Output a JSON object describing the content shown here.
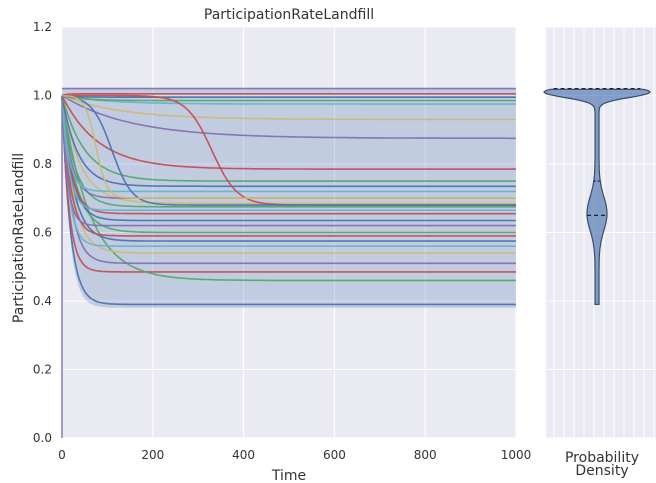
{
  "chart_data": [
    {
      "type": "line",
      "title": "ParticipationRateLandfill",
      "xlabel": "Time",
      "ylabel": "ParticipationRateLandfill",
      "xlim": [
        0,
        1000
      ],
      "ylim": [
        0,
        1.2
      ],
      "xticks": [
        "0",
        "200",
        "400",
        "600",
        "800",
        "1000"
      ],
      "yticks": [
        "0.0",
        "0.2",
        "0.4",
        "0.6",
        "0.8",
        "1.0",
        "1.2"
      ],
      "grid": true,
      "band": {
        "lower_start": 0.36,
        "lower_end": 0.38,
        "upper": 1.02,
        "shape": "lower bound decays from 1.0 to ~0.38 by t≈70"
      },
      "series": [
        {
          "color": "#4c72b0",
          "y0": 1.0,
          "yend": 0.39,
          "tau": 18
        },
        {
          "color": "#c44e52",
          "y0": 1.0,
          "yend": 0.485,
          "tau": 15
        },
        {
          "color": "#55a868",
          "y0": 1.0,
          "yend": 0.46,
          "tau": 60
        },
        {
          "color": "#8172b2",
          "y0": 1.0,
          "yend": 0.51,
          "tau": 20
        },
        {
          "color": "#ccb974",
          "y0": 1.0,
          "yend": 0.54,
          "tau": 25
        },
        {
          "color": "#64b5cd",
          "y0": 1.0,
          "yend": 0.56,
          "tau": 15
        },
        {
          "color": "#4c72b0",
          "y0": 1.0,
          "yend": 0.575,
          "tau": 25
        },
        {
          "color": "#c44e52",
          "y0": 1.0,
          "yend": 0.59,
          "tau": 18
        },
        {
          "color": "#55a868",
          "y0": 1.0,
          "yend": 0.6,
          "tau": 30
        },
        {
          "color": "#8172b2",
          "y0": 1.0,
          "yend": 0.62,
          "tau": 12
        },
        {
          "color": "#4c72b0",
          "y0": 1.0,
          "yend": 0.635,
          "tau": 22
        },
        {
          "color": "#c44e52",
          "y0": 1.0,
          "yend": 0.655,
          "tau": 20
        },
        {
          "color": "#64b5cd",
          "y0": 1.0,
          "yend": 0.665,
          "tau": 15
        },
        {
          "color": "#55a868",
          "y0": 1.0,
          "yend": 0.675,
          "tau": 28
        },
        {
          "color": "#ccb974",
          "y0": 1.0,
          "yend": 0.685,
          "tau": 40
        },
        {
          "color": "#8172b2",
          "y0": 1.0,
          "yend": 0.7,
          "tau": 20
        },
        {
          "color": "#64b5cd",
          "y0": 1.0,
          "yend": 0.72,
          "tau": 15
        },
        {
          "color": "#4c72b0",
          "y0": 1.0,
          "yend": 0.735,
          "tau": 35
        },
        {
          "color": "#55a868",
          "y0": 1.0,
          "yend": 0.75,
          "tau": 50
        },
        {
          "color": "#c44e52",
          "y0": 1.0,
          "yend": 0.785,
          "tau": 80
        },
        {
          "color": "#8172b2",
          "y0": 1.0,
          "yend": 0.875,
          "tau": 150
        },
        {
          "color": "#ccb974",
          "y0": 1.0,
          "yend": 0.93,
          "tau": 130
        },
        {
          "color": "#64b5cd",
          "y0": 1.0,
          "yend": 0.975,
          "tau": 100
        },
        {
          "color": "#55a868",
          "y0": 1.0,
          "yend": 0.985,
          "tau": 50
        },
        {
          "color": "#4c72b0",
          "y0": 1.0,
          "yend": 0.995,
          "tau": 30
        },
        {
          "color": "#c44e52",
          "y0": 1.0,
          "yend": 1.005,
          "tau": 10
        },
        {
          "color": "#8172b2",
          "y0": 1.02,
          "yend": 1.02,
          "tau": 10
        },
        {
          "color": "#c44e52",
          "y0": 1.0,
          "yend": 0.68,
          "tau": 0,
          "sigmoid": {
            "center": 330,
            "width": 28
          }
        },
        {
          "color": "#4c72b0",
          "y0": 1.0,
          "yend": 0.68,
          "tau": 0,
          "sigmoid": {
            "center": 110,
            "width": 22
          }
        },
        {
          "color": "#ccb974",
          "y0": 1.0,
          "yend": 0.7,
          "tau": 0,
          "sigmoid": {
            "center": 75,
            "width": 12
          }
        }
      ]
    },
    {
      "type": "violin",
      "xlabel": "Probability\nDensity",
      "ylim": [
        0,
        1.2
      ],
      "grid": true,
      "range": [
        0.39,
        1.02
      ],
      "median": 0.75,
      "quartiles": [
        0.65,
        1.02
      ],
      "color": "#4c72b0"
    }
  ]
}
